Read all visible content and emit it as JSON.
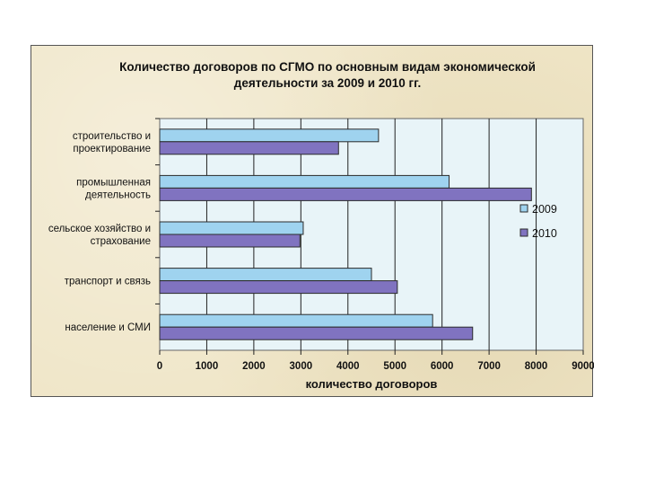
{
  "chart_data": {
    "type": "bar",
    "orientation": "horizontal",
    "title_lines": [
      "Количество договоров по СГМО по основным видам экономической",
      "деятельности за 2009 и 2010 гг."
    ],
    "xlabel": "количество договоров",
    "ylabel": "",
    "xlim": [
      0,
      9000
    ],
    "x_ticks": [
      "0",
      "1000",
      "2000",
      "3000",
      "4000",
      "5000",
      "6000",
      "7000",
      "8000",
      "9000"
    ],
    "grid": true,
    "legend_position": "right",
    "categories": [
      [
        "строительство и",
        "проектирование"
      ],
      [
        "промышленная",
        "деятельность"
      ],
      [
        "сельское хозяйство и",
        "страхование"
      ],
      [
        "транспорт и связь"
      ],
      [
        "население и СМИ"
      ]
    ],
    "series": [
      {
        "name": "2009",
        "color": "#9fd3ef",
        "values": [
          4650,
          6150,
          3050,
          4500,
          5800
        ]
      },
      {
        "name": "2010",
        "color": "#8073c0",
        "values": [
          3800,
          7900,
          2980,
          5050,
          6650
        ]
      }
    ],
    "plot_background": "#e8f4f8"
  }
}
